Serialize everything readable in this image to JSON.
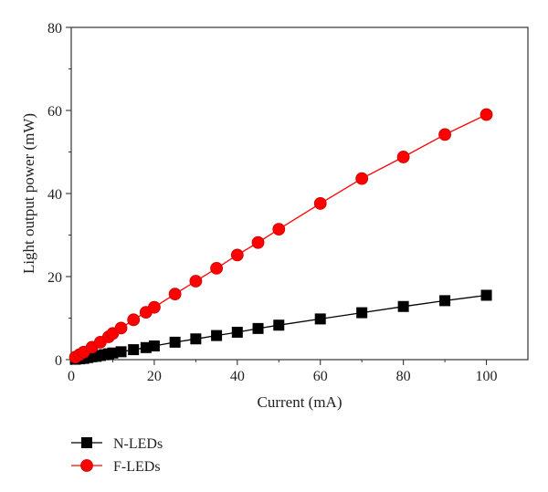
{
  "chart_data": {
    "type": "line",
    "xlabel": "Current (mA)",
    "ylabel": "Light output power (mW)",
    "xlim": [
      0,
      110
    ],
    "ylim": [
      0,
      80
    ],
    "xticks": [
      "0",
      "20",
      "40",
      "60",
      "80",
      "100"
    ],
    "yticks": [
      "0",
      "20",
      "40",
      "60",
      "80"
    ],
    "grid": false,
    "legend_position": "bottom-left",
    "series": [
      {
        "name": "N-LEDs",
        "color": "#000000",
        "marker": "square",
        "x": [
          1,
          2,
          3,
          4,
          5,
          6,
          7,
          8,
          9,
          10,
          12,
          15,
          18,
          20,
          25,
          30,
          35,
          40,
          45,
          50,
          60,
          70,
          80,
          90,
          100
        ],
        "y": [
          0.1,
          0.2,
          0.3,
          0.5,
          0.7,
          0.8,
          1.0,
          1.2,
          1.4,
          1.6,
          1.9,
          2.4,
          2.9,
          3.3,
          4.2,
          5.0,
          5.8,
          6.6,
          7.5,
          8.3,
          9.8,
          11.3,
          12.8,
          14.2,
          15.5
        ]
      },
      {
        "name": "F-LEDs",
        "color": "#ff0000",
        "marker": "circle",
        "x": [
          1,
          2,
          3,
          5,
          7,
          9,
          10,
          12,
          15,
          18,
          20,
          25,
          30,
          35,
          40,
          45,
          50,
          60,
          70,
          80,
          90,
          100
        ],
        "y": [
          0.6,
          1.2,
          1.8,
          3.0,
          4.2,
          5.5,
          6.3,
          7.6,
          9.6,
          11.4,
          12.6,
          15.8,
          18.9,
          22.0,
          25.2,
          28.2,
          31.4,
          37.6,
          43.6,
          48.8,
          54.2,
          59.0
        ]
      }
    ]
  }
}
